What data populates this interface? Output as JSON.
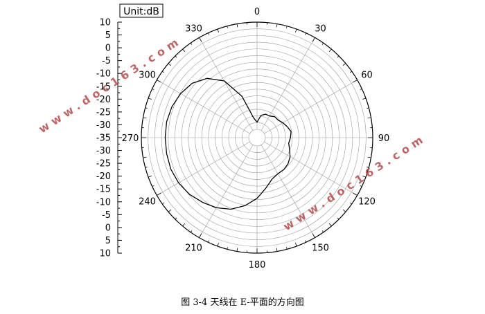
{
  "chart_data": {
    "type": "polar-line",
    "unit_label": "Unit:dB",
    "angle_ticks": [
      0,
      30,
      60,
      90,
      120,
      150,
      180,
      210,
      240,
      270,
      300,
      330
    ],
    "radial_range_db": [
      -35,
      10
    ],
    "radial_axis_labels": [
      "10",
      "5",
      "0",
      "-5",
      "-10",
      "-15",
      "-20",
      "-25",
      "-30",
      "-35",
      "-30",
      "-25",
      "-20",
      "-15",
      "-10",
      "-5",
      "0",
      "5",
      "10"
    ],
    "radial_gridlines": true,
    "angular_gridlines": true,
    "series": [
      {
        "theta_deg": [
          0,
          10,
          20,
          30,
          40,
          50,
          60,
          70,
          80,
          90,
          100,
          110,
          120,
          130,
          140,
          150,
          160,
          170,
          180,
          190,
          200,
          210,
          220,
          230,
          240,
          250,
          260,
          270,
          280,
          290,
          300,
          310,
          320,
          330,
          340,
          350,
          360
        ],
        "gain_db": [
          -32,
          -29,
          -28,
          -28,
          -27,
          -27,
          -26,
          -25,
          -24,
          -24.5,
          -25,
          -24,
          -22.5,
          -21.5,
          -21,
          -21,
          -20,
          -17,
          -13,
          -9.5,
          -6.5,
          -4.5,
          -3,
          -1.5,
          -0.5,
          0,
          0,
          0,
          0,
          -0.5,
          -1.5,
          -3,
          -6,
          -11,
          -20,
          -30,
          -32
        ],
        "color": "#000000"
      }
    ]
  },
  "watermarks": [
    "www.doc163.com",
    "www.doc163.com"
  ],
  "caption": "图 3-4 天线在 E-平面的方向图"
}
